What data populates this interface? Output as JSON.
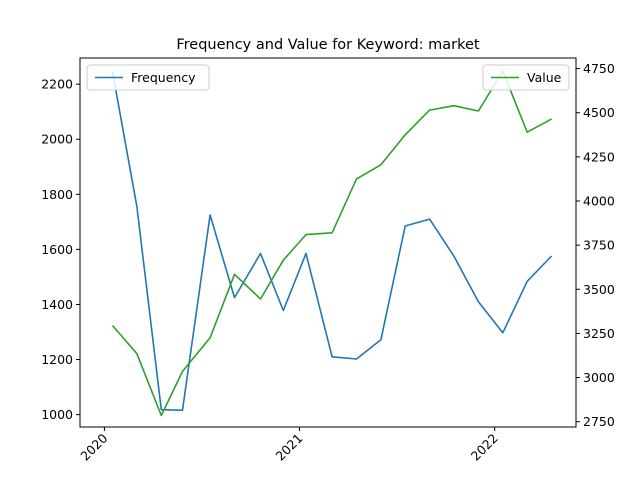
{
  "chart_data": {
    "type": "line",
    "title": "Frequency and Value for Keyword: market",
    "xlabel": "",
    "x_ticks": [
      {
        "label": "2020",
        "month": 0
      },
      {
        "label": "2021",
        "month": 12
      },
      {
        "label": "2022",
        "month": 24
      }
    ],
    "xlim_months": [
      -1.5,
      29
    ],
    "left_axis": {
      "ylim": [
        955,
        2295
      ],
      "ticks": [
        1000,
        1200,
        1400,
        1600,
        1800,
        2000,
        2200
      ]
    },
    "right_axis": {
      "ylim": [
        2720,
        4810
      ],
      "ticks": [
        2750,
        3000,
        3250,
        3500,
        3750,
        4000,
        4250,
        4500,
        4750
      ]
    },
    "series": [
      {
        "name": "Frequency",
        "axis": "left",
        "color": "#1f77b4",
        "legend": "top-left",
        "x_months": [
          0.5,
          2,
          3.5,
          4.8,
          6.5,
          8,
          9.6,
          11,
          12.4,
          14,
          15.5,
          17,
          18.5,
          20,
          21.5,
          23,
          24.5,
          26,
          27.5
        ],
        "values": [
          2245,
          1755,
          1018,
          1016,
          1725,
          1425,
          1585,
          1378,
          1585,
          1210,
          1202,
          1272,
          1685,
          1710,
          1575,
          1410,
          1297,
          1484,
          1576
        ]
      },
      {
        "name": "Value",
        "axis": "right",
        "color": "#2ca02c",
        "legend": "top-right",
        "x_months": [
          0.5,
          2,
          3.5,
          4.8,
          6.5,
          8,
          9.6,
          11,
          12.4,
          14,
          15.5,
          17,
          18.5,
          20,
          21.5,
          23,
          24.5,
          26,
          27.5
        ],
        "values": [
          3295,
          3135,
          2785,
          3035,
          3225,
          3585,
          3445,
          3665,
          3810,
          3820,
          4125,
          4205,
          4375,
          4515,
          4540,
          4510,
          4735,
          4390,
          4465
        ]
      }
    ]
  }
}
